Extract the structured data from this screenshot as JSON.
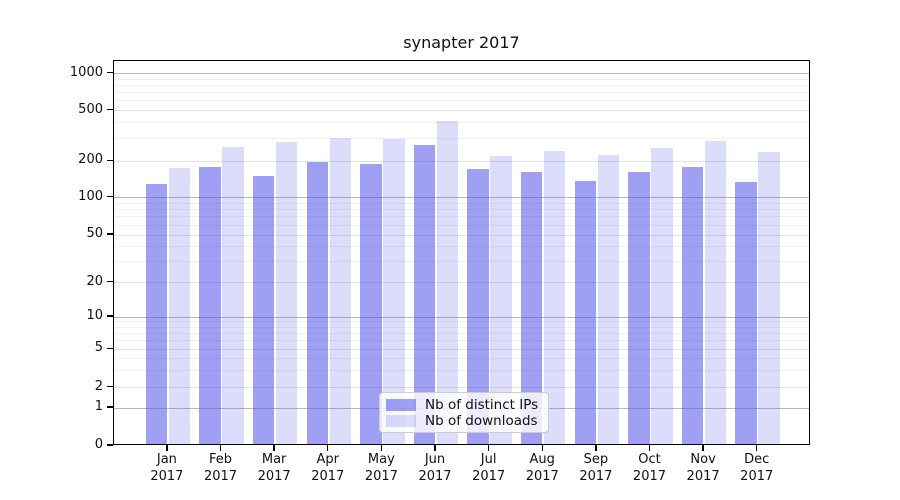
{
  "chart_data": {
    "type": "bar",
    "title": "synapter 2017",
    "categories": [
      "Jan",
      "Feb",
      "Mar",
      "Apr",
      "May",
      "Jun",
      "Jul",
      "Aug",
      "Sep",
      "Oct",
      "Nov",
      "Dec"
    ],
    "x_year": "2017",
    "series": [
      {
        "name": "Nb of distinct IPs",
        "color": "rgba(80,80,235,0.55)",
        "color_hex": "#9f9ff3",
        "values": [
          125,
          174,
          146,
          191,
          183,
          259,
          166,
          156,
          133,
          158,
          172,
          129
        ]
      },
      {
        "name": "Nb of downloads",
        "color": "rgba(80,80,235,0.20)",
        "color_hex": "#dcdcfa",
        "values": [
          168,
          248,
          272,
          292,
          288,
          397,
          213,
          231,
          216,
          244,
          280,
          227
        ]
      }
    ],
    "y_axis": {
      "scale": "symlog",
      "ticks": [
        0,
        1,
        2,
        5,
        10,
        20,
        50,
        100,
        200,
        500,
        1000
      ],
      "range": [
        0,
        1260
      ]
    },
    "grid": true,
    "legend_position": "lower center"
  }
}
